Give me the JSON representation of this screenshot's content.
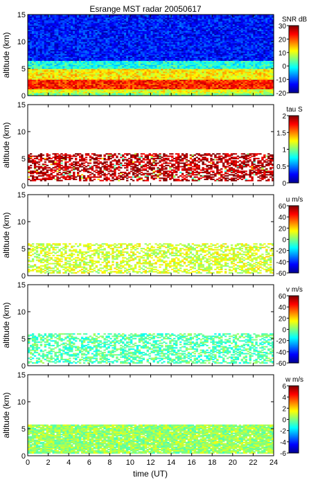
{
  "title": "Esrange MST radar 20050617",
  "xlabel": "time (UT)",
  "xticks": [
    "0",
    "2",
    "4",
    "6",
    "8",
    "10",
    "12",
    "14",
    "16",
    "18",
    "20",
    "22",
    "24"
  ],
  "chart_data": [
    {
      "type": "heatmap",
      "panel": "snr",
      "ylabel": "altitude (km)",
      "yticks": [
        "0",
        "5",
        "10",
        "15"
      ],
      "xlim": [
        0,
        24
      ],
      "ylim": [
        0,
        15
      ],
      "colorbar": {
        "label": "SNR dB",
        "min": -20,
        "max": 30,
        "ticks": [
          "30",
          "20",
          "10",
          "0",
          "-10",
          "-20"
        ]
      },
      "layers": [
        {
          "altitude_km": [
            0.5,
            1.2
          ],
          "typical_value": 10
        },
        {
          "altitude_km": [
            1.2,
            3.0
          ],
          "typical_value": 22
        },
        {
          "altitude_km": [
            3.0,
            5.0
          ],
          "typical_value": 12
        },
        {
          "altitude_km": [
            5.0,
            6.5
          ],
          "typical_value": 0
        },
        {
          "altitude_km": [
            6.5,
            15
          ],
          "typical_value": -13
        }
      ],
      "grid": false
    },
    {
      "type": "heatmap",
      "panel": "tau",
      "ylabel": "altitude (km)",
      "yticks": [
        "0",
        "5",
        "10",
        "15"
      ],
      "xlim": [
        0,
        24
      ],
      "ylim": [
        0,
        15
      ],
      "colorbar": {
        "label": "tau S",
        "min": 0,
        "max": 2,
        "ticks": [
          "2",
          "1.5",
          "1",
          "0.5",
          "0"
        ]
      },
      "data_altitude_km": [
        0.8,
        6.0
      ],
      "typical_value": 1.9,
      "grid": false
    },
    {
      "type": "heatmap",
      "panel": "u",
      "ylabel": "altitude (km)",
      "yticks": [
        "0",
        "5",
        "10",
        "15"
      ],
      "xlim": [
        0,
        24
      ],
      "ylim": [
        0,
        15
      ],
      "colorbar": {
        "label": "u m/s",
        "min": -60,
        "max": 60,
        "ticks": [
          "60",
          "40",
          "20",
          "0",
          "-20",
          "-40",
          "-60"
        ]
      },
      "data_altitude_km": [
        0.5,
        6.0
      ],
      "typical_value": 10,
      "grid": false
    },
    {
      "type": "heatmap",
      "panel": "v",
      "ylabel": "altitude (km)",
      "yticks": [
        "0",
        "5",
        "10",
        "15"
      ],
      "xlim": [
        0,
        24
      ],
      "ylim": [
        0,
        15
      ],
      "colorbar": {
        "label": "v m/s",
        "min": -60,
        "max": 60,
        "ticks": [
          "60",
          "40",
          "20",
          "0",
          "-20",
          "-40",
          "-60"
        ]
      },
      "data_altitude_km": [
        0.5,
        6.0
      ],
      "typical_value": -5,
      "grid": false
    },
    {
      "type": "heatmap",
      "panel": "w",
      "ylabel": "altitude (km)",
      "yticks": [
        "0",
        "5",
        "10",
        "15"
      ],
      "xlim": [
        0,
        24
      ],
      "ylim": [
        0,
        15
      ],
      "colorbar": {
        "label": "w m/s",
        "min": -6,
        "max": 6,
        "ticks": [
          "6",
          "4",
          "2",
          "0",
          "-2",
          "-4",
          "-6"
        ]
      },
      "data_altitude_km": [
        0.5,
        5.8
      ],
      "typical_value": 0.3,
      "grid": false
    }
  ]
}
